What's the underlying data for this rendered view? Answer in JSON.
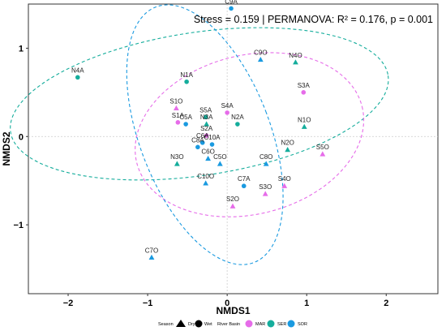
{
  "chart_data": {
    "type": "scatter",
    "title": "",
    "xlabel": "NMDS1",
    "ylabel": "NMDS2",
    "xlim": [
      -2.5,
      2.65
    ],
    "ylim": [
      -1.78,
      1.5
    ],
    "x_ticks": [
      -2,
      -1,
      0,
      1,
      2
    ],
    "y_ticks": [
      -1,
      0,
      1
    ],
    "grid": "dashed zero lines",
    "annotation": "Stress = 0.159 | PERMANOVA: R² = 0.176, p = 0.001",
    "colors": {
      "MAR": "#e66ce9",
      "SER": "#15ad9c",
      "SOR": "#1a9ae0",
      "ellipse_SER": "#15ad9c",
      "ellipse_MAR": "#e66ce9",
      "ellipse_SOR": "#1a9ae0"
    },
    "legend": {
      "season_title": "Season",
      "season_items": [
        {
          "label": "Dry",
          "shape": "triangle"
        },
        {
          "label": "Wet",
          "shape": "circle"
        }
      ],
      "basin_title": "River Basin",
      "basin_items": [
        {
          "label": "MAR",
          "color": "#e66ce9"
        },
        {
          "label": "SER",
          "color": "#15ad9c"
        },
        {
          "label": "SOR",
          "color": "#1a9ae0"
        }
      ],
      "placement": "bottom"
    },
    "points": [
      {
        "label": "C9A",
        "x": 0.05,
        "y": 1.45,
        "basin": "SOR",
        "season": "Wet"
      },
      {
        "label": "C9O",
        "x": 0.42,
        "y": 0.87,
        "basin": "SOR",
        "season": "Dry"
      },
      {
        "label": "N4O",
        "x": 0.86,
        "y": 0.84,
        "basin": "SER",
        "season": "Dry"
      },
      {
        "label": "N4A",
        "x": -1.88,
        "y": 0.67,
        "basin": "SER",
        "season": "Wet"
      },
      {
        "label": "N1A",
        "x": -0.51,
        "y": 0.62,
        "basin": "SER",
        "season": "Wet"
      },
      {
        "label": "S3A",
        "x": 0.96,
        "y": 0.5,
        "basin": "MAR",
        "season": "Wet"
      },
      {
        "label": "S1O",
        "x": -0.64,
        "y": 0.32,
        "basin": "MAR",
        "season": "Dry"
      },
      {
        "label": "S4A",
        "x": 0.0,
        "y": 0.27,
        "basin": "MAR",
        "season": "Wet"
      },
      {
        "label": "S5A",
        "x": -0.27,
        "y": 0.22,
        "basin": "SER",
        "season": "Wet"
      },
      {
        "label": "S1A",
        "x": -0.62,
        "y": 0.16,
        "basin": "MAR",
        "season": "Wet"
      },
      {
        "label": "C5A",
        "x": -0.52,
        "y": 0.14,
        "basin": "SOR",
        "season": "Wet"
      },
      {
        "label": "N3A",
        "x": -0.26,
        "y": 0.14,
        "basin": "SER",
        "season": "Dry"
      },
      {
        "label": "N2A",
        "x": 0.13,
        "y": 0.14,
        "basin": "SER",
        "season": "Wet"
      },
      {
        "label": "N1O",
        "x": 0.97,
        "y": 0.11,
        "basin": "SER",
        "season": "Dry"
      },
      {
        "label": "S2A",
        "x": -0.26,
        "y": 0.01,
        "basin": "MAR",
        "season": "Wet"
      },
      {
        "label": "C8A",
        "x": -0.37,
        "y": -0.12,
        "basin": "SOR",
        "season": "Wet"
      },
      {
        "label": "C6A",
        "x": -0.31,
        "y": -0.07,
        "basin": "SOR",
        "season": "Wet"
      },
      {
        "label": "C10A",
        "x": -0.19,
        "y": -0.09,
        "basin": "SOR",
        "season": "Wet"
      },
      {
        "label": "N2O",
        "x": 0.76,
        "y": -0.15,
        "basin": "SER",
        "season": "Dry"
      },
      {
        "label": "S5O",
        "x": 1.2,
        "y": -0.2,
        "basin": "MAR",
        "season": "Dry"
      },
      {
        "label": "C6O",
        "x": -0.24,
        "y": -0.25,
        "basin": "SOR",
        "season": "Dry"
      },
      {
        "label": "N3O",
        "x": -0.63,
        "y": -0.31,
        "basin": "SER",
        "season": "Dry"
      },
      {
        "label": "C5O",
        "x": -0.09,
        "y": -0.31,
        "basin": "SOR",
        "season": "Dry"
      },
      {
        "label": "C8O",
        "x": 0.49,
        "y": -0.31,
        "basin": "SOR",
        "season": "Dry"
      },
      {
        "label": "C10O",
        "x": -0.27,
        "y": -0.53,
        "basin": "SOR",
        "season": "Dry"
      },
      {
        "label": "C7A",
        "x": 0.21,
        "y": -0.56,
        "basin": "SOR",
        "season": "Wet"
      },
      {
        "label": "S4O",
        "x": 0.72,
        "y": -0.56,
        "basin": "MAR",
        "season": "Dry"
      },
      {
        "label": "S3O",
        "x": 0.48,
        "y": -0.65,
        "basin": "MAR",
        "season": "Dry"
      },
      {
        "label": "S2O",
        "x": 0.07,
        "y": -0.79,
        "basin": "MAR",
        "season": "Dry"
      },
      {
        "label": "C7O",
        "x": -0.95,
        "y": -1.37,
        "basin": "SOR",
        "season": "Dry"
      }
    ],
    "ellipses": [
      {
        "basin": "SER",
        "cx": -0.35,
        "cy": 0.37,
        "rx": 2.4,
        "ry": 0.81,
        "rotation_deg": -8.5
      },
      {
        "basin": "MAR",
        "cx": 0.28,
        "cy": 0.02,
        "rx": 1.46,
        "ry": 0.9,
        "rotation_deg": -14
      },
      {
        "basin": "SOR",
        "cx": -0.28,
        "cy": 0.02,
        "rx": 0.82,
        "ry": 1.55,
        "rotation_deg": -21
      }
    ]
  }
}
